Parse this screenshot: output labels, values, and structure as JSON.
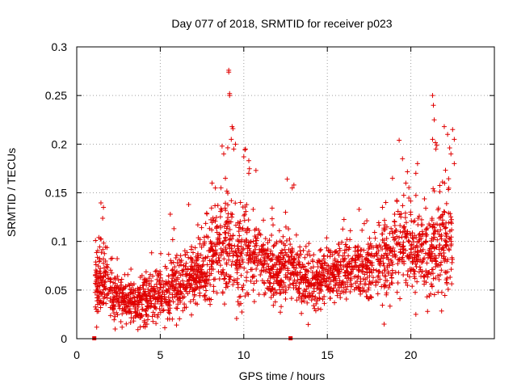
{
  "chart_data": {
    "type": "scatter",
    "title": "Day 077 of 2018, SRMTID for receiver p023",
    "xlabel": "GPS time / hours",
    "ylabel": "SRMTID / TECUs",
    "xlim": [
      0,
      25
    ],
    "ylim": [
      0,
      0.3
    ],
    "xticks": [
      0,
      5,
      10,
      15,
      20
    ],
    "xtick_labels": [
      "0",
      "5",
      "10",
      "15",
      "20"
    ],
    "yticks": [
      0,
      0.05,
      0.1,
      0.15,
      0.2,
      0.25,
      0.3
    ],
    "ytick_labels": [
      "0",
      "0.05",
      "0.1",
      "0.15",
      "0.2",
      "0.25",
      "0.3"
    ],
    "grid": true,
    "legend": "none",
    "marker": "+",
    "marker_color": "#e00000",
    "series": [
      {
        "name": "SRMTID",
        "envelope": {
          "note": "approximate trend of the dense point cloud (hour, median, spread)",
          "points": [
            [
              1.1,
              0.05,
              0.02
            ],
            [
              1.5,
              0.06,
              0.025
            ],
            [
              2.0,
              0.048,
              0.02
            ],
            [
              2.5,
              0.042,
              0.018
            ],
            [
              3.0,
              0.04,
              0.015
            ],
            [
              3.5,
              0.038,
              0.015
            ],
            [
              4.0,
              0.04,
              0.015
            ],
            [
              4.5,
              0.045,
              0.018
            ],
            [
              5.0,
              0.045,
              0.018
            ],
            [
              5.5,
              0.048,
              0.02
            ],
            [
              6.0,
              0.055,
              0.02
            ],
            [
              6.5,
              0.058,
              0.02
            ],
            [
              7.0,
              0.065,
              0.02
            ],
            [
              7.5,
              0.072,
              0.022
            ],
            [
              8.0,
              0.078,
              0.025
            ],
            [
              8.5,
              0.09,
              0.03
            ],
            [
              9.0,
              0.1,
              0.035
            ],
            [
              9.5,
              0.085,
              0.03
            ],
            [
              10.0,
              0.09,
              0.03
            ],
            [
              10.5,
              0.085,
              0.025
            ],
            [
              11.0,
              0.078,
              0.022
            ],
            [
              11.5,
              0.07,
              0.02
            ],
            [
              12.0,
              0.068,
              0.02
            ],
            [
              12.5,
              0.075,
              0.022
            ],
            [
              13.0,
              0.065,
              0.02
            ],
            [
              13.5,
              0.06,
              0.018
            ],
            [
              14.0,
              0.058,
              0.018
            ],
            [
              14.5,
              0.06,
              0.018
            ],
            [
              15.0,
              0.062,
              0.02
            ],
            [
              15.5,
              0.068,
              0.02
            ],
            [
              16.0,
              0.07,
              0.02
            ],
            [
              16.5,
              0.072,
              0.02
            ],
            [
              17.0,
              0.075,
              0.022
            ],
            [
              17.5,
              0.072,
              0.022
            ],
            [
              18.0,
              0.078,
              0.022
            ],
            [
              18.5,
              0.08,
              0.025
            ],
            [
              19.0,
              0.09,
              0.028
            ],
            [
              19.5,
              0.1,
              0.03
            ],
            [
              20.0,
              0.095,
              0.03
            ],
            [
              20.5,
              0.09,
              0.028
            ],
            [
              21.0,
              0.085,
              0.03
            ],
            [
              21.5,
              0.1,
              0.035
            ],
            [
              22.0,
              0.1,
              0.035
            ],
            [
              22.5,
              0.105,
              0.035
            ]
          ]
        },
        "outliers": [
          [
            9.1,
            0.276
          ],
          [
            9.1,
            0.274
          ],
          [
            9.15,
            0.252
          ],
          [
            9.15,
            0.25
          ],
          [
            9.3,
            0.218
          ],
          [
            9.35,
            0.216
          ],
          [
            9.25,
            0.205
          ],
          [
            8.7,
            0.198
          ],
          [
            8.8,
            0.19
          ],
          [
            9.5,
            0.2
          ],
          [
            9.4,
            0.195
          ],
          [
            10.1,
            0.195
          ],
          [
            10.0,
            0.187
          ],
          [
            10.3,
            0.183
          ],
          [
            10.3,
            0.17
          ],
          [
            12.6,
            0.164
          ],
          [
            12.9,
            0.155
          ],
          [
            13.0,
            0.158
          ],
          [
            21.3,
            0.25
          ],
          [
            21.35,
            0.24
          ],
          [
            21.4,
            0.225
          ],
          [
            21.3,
            0.205
          ],
          [
            21.5,
            0.195
          ],
          [
            22.0,
            0.218
          ],
          [
            22.2,
            0.21
          ],
          [
            22.5,
            0.215
          ],
          [
            22.6,
            0.205
          ],
          [
            22.4,
            0.19
          ],
          [
            22.6,
            0.18
          ],
          [
            19.3,
            0.204
          ],
          [
            19.5,
            0.185
          ],
          [
            20.4,
            0.18
          ],
          [
            20.3,
            0.17
          ],
          [
            18.9,
            0.165
          ],
          [
            19.7,
            0.16
          ],
          [
            1.6,
            0.135
          ],
          [
            5.6,
            0.128
          ],
          [
            6.7,
            0.138
          ],
          [
            16.9,
            0.133
          ],
          [
            18.3,
            0.135
          ],
          [
            18.5,
            0.14
          ],
          [
            8.1,
            0.16
          ],
          [
            8.3,
            0.155
          ],
          [
            8.9,
            0.165
          ],
          [
            9.8,
            0.14
          ],
          [
            12.5,
            0.13
          ],
          [
            2.3,
            0.01
          ],
          [
            3.8,
            0.012
          ],
          [
            4.1,
            0.012
          ],
          [
            18.4,
            0.015
          ],
          [
            20.3,
            0.025
          ],
          [
            21.0,
            0.028
          ]
        ]
      },
      {
        "name": "Flag markers",
        "marker": "square",
        "points": [
          [
            1.05,
            0.0
          ],
          [
            12.8,
            0.0
          ]
        ]
      }
    ]
  }
}
